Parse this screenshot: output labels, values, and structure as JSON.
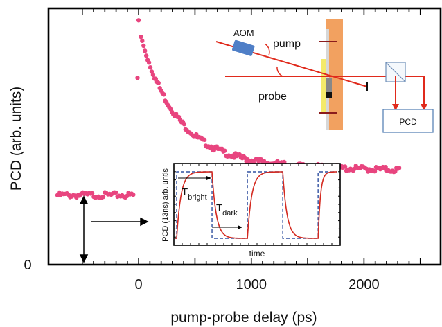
{
  "chart_data": {
    "type": "scatter",
    "xlabel": "pump-probe delay  (ps)",
    "ylabel": "PCD (arb. units)",
    "xticks": [
      "0",
      "1000",
      "2000"
    ],
    "yticks": [
      "0"
    ],
    "xlim": [
      -800,
      2680
    ],
    "ylim": [
      0,
      1.07
    ],
    "marker_color": "#e8457f",
    "series_values": {
      "baseline_level": 0.29,
      "rise_point": [
        -10,
        0.78
      ],
      "peak": [
        0,
        1.02
      ],
      "decay_start_level": 0.95,
      "decay_tau_ps": 330,
      "plateau_level": 0.42,
      "plateau_end_level": 0.395,
      "x_range_before": [
        -720,
        -40
      ],
      "x_range_after": [
        20,
        2320
      ]
    },
    "schematic": {
      "labels": {
        "aom": "AOM",
        "pump": "pump",
        "probe": "probe",
        "pcd": "PCD"
      },
      "colors": {
        "beam": "#e02a1c",
        "aom": "#4f7fc7",
        "holder": "#f2a160",
        "sample": "#f4ea6a",
        "pcd_box": "#5a84b6"
      }
    },
    "inset": {
      "type": "line",
      "xlabel": "time",
      "ylabel": "PCD (13ns) arb. untis",
      "t_bright_label": "T",
      "t_bright_sub": "bright",
      "t_dark_label": "T",
      "t_dark_sub": "dark",
      "ideal_color": "#3050a0",
      "signal_color": "#d42a20",
      "square_wave_edges": [
        0,
        0.22,
        0.44,
        0.66,
        0.88,
        1.0
      ]
    }
  }
}
